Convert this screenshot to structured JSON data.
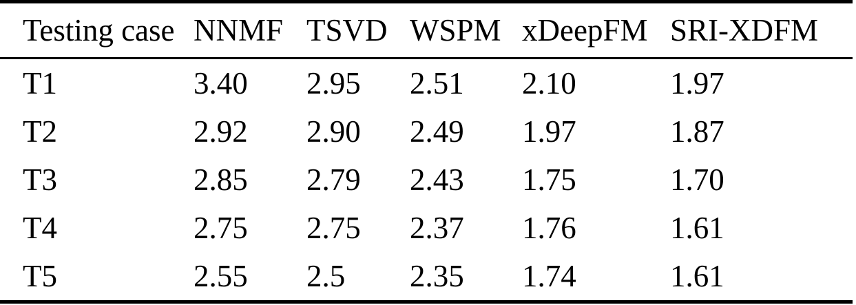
{
  "colors": {
    "background": "#ffffff",
    "text": "#000000",
    "rule": "#000000"
  },
  "table": {
    "columns": [
      "Testing case",
      "NNMF",
      "TSVD",
      "WSPM",
      "xDeepFM",
      "SRI-XDFM"
    ],
    "rows": [
      {
        "label": "T1",
        "values": [
          "3.40",
          "2.95",
          "2.51",
          "2.10",
          "1.97"
        ]
      },
      {
        "label": "T2",
        "values": [
          "2.92",
          "2.90",
          "2.49",
          "1.97",
          "1.87"
        ]
      },
      {
        "label": "T3",
        "values": [
          "2.85",
          "2.79",
          "2.43",
          "1.75",
          "1.70"
        ]
      },
      {
        "label": "T4",
        "values": [
          "2.75",
          "2.75",
          "2.37",
          "1.76",
          "1.61"
        ]
      },
      {
        "label": "T5",
        "values": [
          "2.55",
          "2.5",
          "2.35",
          "1.74",
          "1.61"
        ]
      }
    ]
  },
  "chart_data": {
    "type": "table",
    "columns": [
      "Testing case",
      "NNMF",
      "TSVD",
      "WSPM",
      "xDeepFM",
      "SRI-XDFM"
    ],
    "rows": [
      [
        "T1",
        3.4,
        2.95,
        2.51,
        2.1,
        1.97
      ],
      [
        "T2",
        2.92,
        2.9,
        2.49,
        1.97,
        1.87
      ],
      [
        "T3",
        2.85,
        2.79,
        2.43,
        1.75,
        1.7
      ],
      [
        "T4",
        2.75,
        2.75,
        2.37,
        1.76,
        1.61
      ],
      [
        "T5",
        2.55,
        2.5,
        2.35,
        1.74,
        1.61
      ]
    ]
  }
}
